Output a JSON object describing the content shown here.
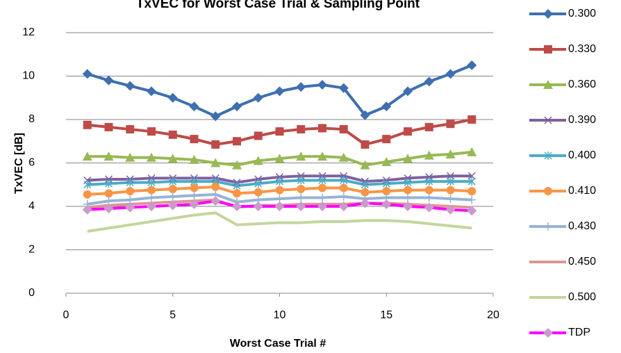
{
  "chart_data": {
    "type": "line",
    "title": "TxVEC for Worst Case Trial & Sampling Point",
    "x_label": "Worst Case Trial #",
    "y_label": "TxVEC [dB]",
    "x": [
      1,
      2,
      3,
      4,
      5,
      6,
      7,
      8,
      9,
      10,
      11,
      12,
      13,
      14,
      15,
      16,
      17,
      18,
      19
    ],
    "xlim": [
      0,
      20
    ],
    "xticks": [
      0,
      5,
      10,
      15,
      20
    ],
    "ylim": [
      0,
      12
    ],
    "yticks": [
      0,
      2,
      4,
      6,
      8,
      10,
      12
    ],
    "grid": true,
    "series": [
      {
        "name": "0.300",
        "color": "#3e6fb0",
        "marker": "diamond",
        "values": [
          10.1,
          9.8,
          9.55,
          9.3,
          9.0,
          8.6,
          8.15,
          8.6,
          9.0,
          9.3,
          9.5,
          9.6,
          9.45,
          8.2,
          8.6,
          9.3,
          9.75,
          10.1,
          10.5
        ]
      },
      {
        "name": "0.330",
        "color": "#be4b48",
        "marker": "square",
        "values": [
          7.75,
          7.65,
          7.55,
          7.45,
          7.3,
          7.1,
          6.85,
          7.0,
          7.25,
          7.45,
          7.55,
          7.6,
          7.55,
          6.85,
          7.1,
          7.45,
          7.65,
          7.8,
          8.0
        ]
      },
      {
        "name": "0.360",
        "color": "#98b954",
        "marker": "triangle",
        "values": [
          6.3,
          6.3,
          6.25,
          6.25,
          6.2,
          6.15,
          6.0,
          5.9,
          6.1,
          6.2,
          6.3,
          6.3,
          6.25,
          5.9,
          6.05,
          6.2,
          6.35,
          6.4,
          6.5
        ]
      },
      {
        "name": "0.390",
        "color": "#7e60a0",
        "marker": "x",
        "values": [
          5.2,
          5.25,
          5.25,
          5.3,
          5.3,
          5.3,
          5.3,
          5.1,
          5.25,
          5.35,
          5.4,
          5.4,
          5.4,
          5.15,
          5.2,
          5.3,
          5.35,
          5.4,
          5.4
        ]
      },
      {
        "name": "0.400",
        "color": "#4bacc6",
        "marker": "asterisk",
        "values": [
          5.0,
          5.05,
          5.1,
          5.1,
          5.15,
          5.15,
          5.15,
          4.95,
          5.05,
          5.15,
          5.2,
          5.2,
          5.2,
          5.0,
          5.05,
          5.1,
          5.15,
          5.15,
          5.15
        ]
      },
      {
        "name": "0.410",
        "color": "#f79646",
        "marker": "circle",
        "values": [
          4.55,
          4.6,
          4.7,
          4.75,
          4.8,
          4.85,
          4.9,
          4.6,
          4.65,
          4.75,
          4.8,
          4.85,
          4.85,
          4.65,
          4.7,
          4.75,
          4.75,
          4.75,
          4.7
        ]
      },
      {
        "name": "0.430",
        "color": "#95b3d7",
        "marker": "plus",
        "values": [
          4.1,
          4.25,
          4.3,
          4.4,
          4.45,
          4.5,
          4.55,
          4.2,
          4.3,
          4.35,
          4.4,
          4.4,
          4.45,
          4.35,
          4.4,
          4.4,
          4.4,
          4.35,
          4.3
        ]
      },
      {
        "name": "0.450",
        "color": "#d99694",
        "values": [
          3.95,
          4.05,
          4.1,
          4.15,
          4.2,
          4.25,
          4.3,
          3.95,
          4.05,
          4.05,
          4.1,
          4.1,
          4.1,
          4.15,
          4.15,
          4.1,
          4.05,
          4.0,
          3.95
        ]
      },
      {
        "name": "0.500",
        "color": "#c3d69b",
        "values": [
          2.85,
          3.0,
          3.15,
          3.3,
          3.45,
          3.6,
          3.7,
          3.15,
          3.2,
          3.25,
          3.25,
          3.3,
          3.3,
          3.35,
          3.35,
          3.3,
          3.2,
          3.1,
          3.0
        ]
      },
      {
        "name": "TDP",
        "color": "#ff00ff",
        "marker": "diamond",
        "marker_color": "#cc99cc",
        "values": [
          3.85,
          3.9,
          3.95,
          4.0,
          4.05,
          4.1,
          4.25,
          4.0,
          4.0,
          4.0,
          4.0,
          4.0,
          4.0,
          4.15,
          4.1,
          4.0,
          3.95,
          3.85,
          3.8
        ]
      }
    ]
  }
}
